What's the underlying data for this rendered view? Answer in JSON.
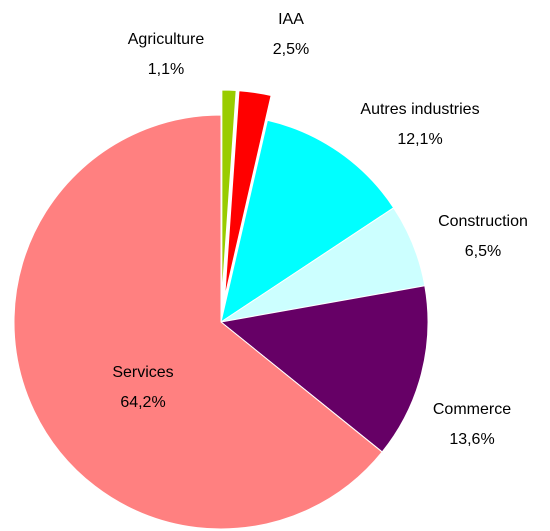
{
  "chart_data": {
    "type": "pie",
    "categories": [
      "Agriculture",
      "IAA",
      "Autres industries",
      "Construction",
      "Commerce",
      "Services"
    ],
    "values": [
      1.1,
      2.5,
      12.1,
      6.5,
      13.6,
      64.2
    ],
    "value_labels": [
      "1,1%",
      "2,5%",
      "12,1%",
      "6,5%",
      "13,6%",
      "64,2%"
    ],
    "colors": [
      "#99cc00",
      "#ff0000",
      "#00ffff",
      "#ccffff",
      "#660066",
      "#ff8080"
    ],
    "exploded": [
      true,
      true,
      false,
      false,
      false,
      false
    ]
  }
}
